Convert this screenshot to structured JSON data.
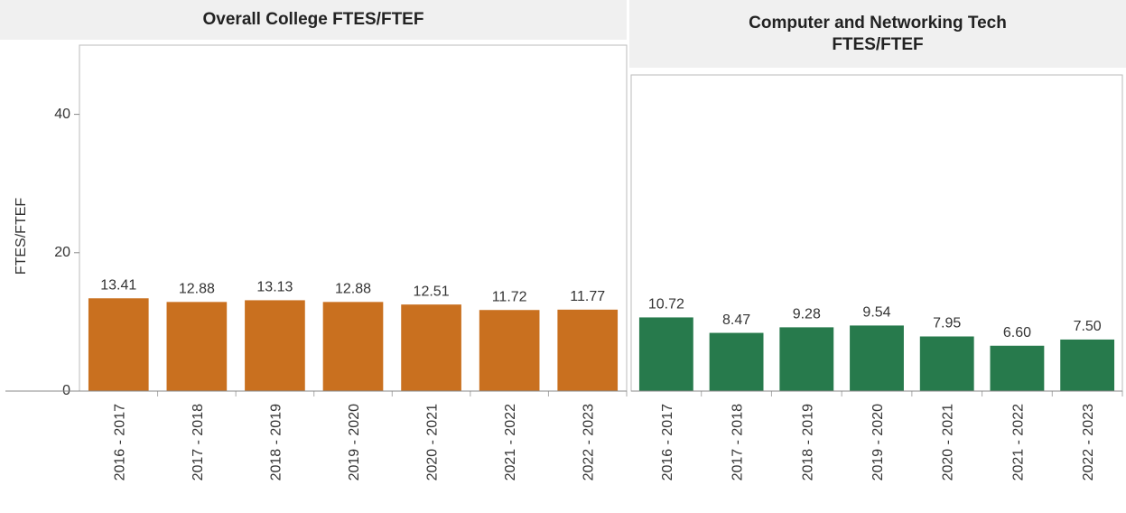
{
  "chart_data": [
    {
      "type": "bar",
      "title": "Overall College FTES/FTEF",
      "ylabel": "FTES/FTEF",
      "categories": [
        "2016 - 2017",
        "2017 - 2018",
        "2018 - 2019",
        "2019 - 2020",
        "2020 - 2021",
        "2021 - 2022",
        "2022 - 2023"
      ],
      "values": [
        13.41,
        12.88,
        13.13,
        12.88,
        12.51,
        11.72,
        11.77
      ],
      "value_labels": [
        "13.41",
        "12.88",
        "13.13",
        "12.88",
        "12.51",
        "11.72",
        "11.77"
      ],
      "color": "#c9701f",
      "ylim": [
        0,
        50
      ],
      "yticks": [
        0,
        20,
        40
      ]
    },
    {
      "type": "bar",
      "title": "Computer and Networking Tech FTES/FTEF",
      "categories": [
        "2016 - 2017",
        "2017 - 2018",
        "2018 - 2019",
        "2019 - 2020",
        "2020 - 2021",
        "2021 - 2022",
        "2022 - 2023"
      ],
      "values": [
        10.72,
        8.47,
        9.28,
        9.54,
        7.95,
        6.6,
        7.5
      ],
      "value_labels": [
        "10.72",
        "8.47",
        "9.28",
        "9.54",
        "7.95",
        "6.60",
        "7.50"
      ],
      "color": "#277a4c",
      "ylim": [
        0,
        46
      ]
    }
  ]
}
